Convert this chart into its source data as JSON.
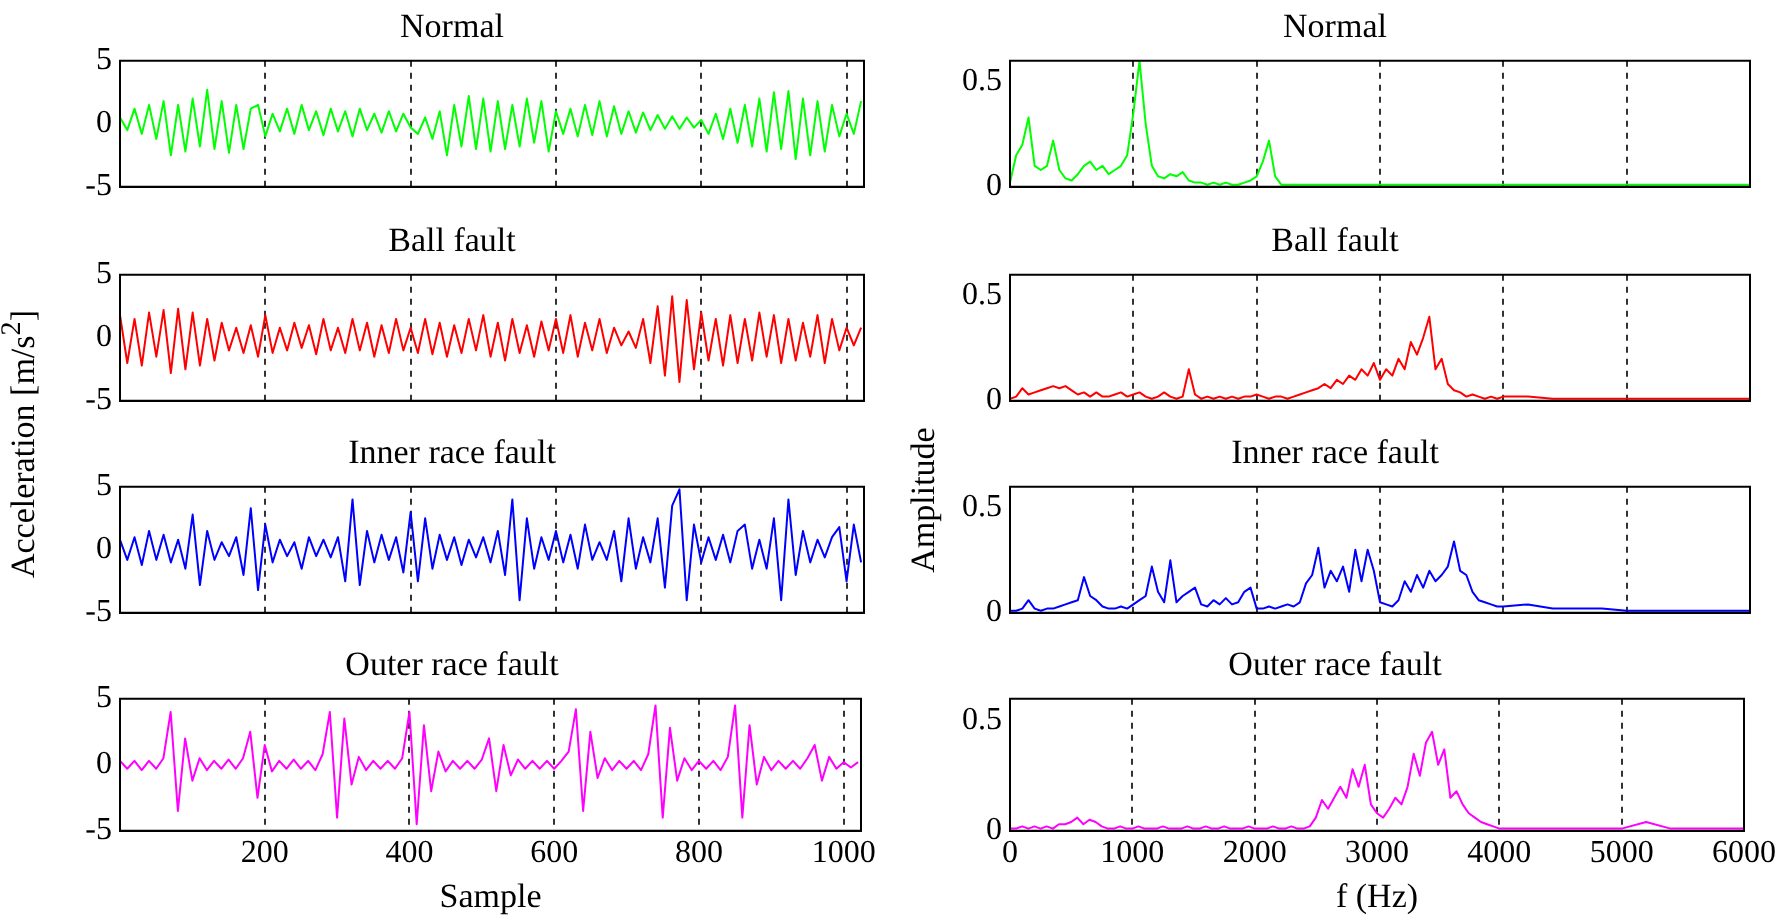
{
  "chart_data": [
    {
      "type": "line",
      "title": "Normal",
      "xlim": [
        0,
        1024
      ],
      "xticks": [
        200,
        400,
        600,
        800,
        1000
      ],
      "ylim": [
        -5,
        5
      ],
      "yticks": [
        -5,
        0,
        5
      ],
      "grid": "x",
      "tick_labels": "y",
      "x": [
        0,
        10,
        20,
        30,
        40,
        50,
        60,
        70,
        80,
        90,
        100,
        110,
        120,
        130,
        140,
        150,
        160,
        170,
        180,
        190,
        200,
        210,
        220,
        230,
        240,
        250,
        260,
        270,
        280,
        290,
        300,
        310,
        320,
        330,
        340,
        350,
        360,
        370,
        380,
        390,
        400,
        410,
        420,
        430,
        440,
        450,
        460,
        470,
        480,
        490,
        500,
        510,
        520,
        530,
        540,
        550,
        560,
        570,
        580,
        590,
        600,
        610,
        620,
        630,
        640,
        650,
        660,
        670,
        680,
        690,
        700,
        710,
        720,
        730,
        740,
        750,
        760,
        770,
        780,
        790,
        800,
        810,
        820,
        830,
        840,
        850,
        860,
        870,
        880,
        890,
        900,
        910,
        920,
        930,
        940,
        950,
        960,
        970,
        980,
        990,
        1000,
        1010,
        1020
      ],
      "series": [
        {
          "color": "#00ff00",
          "values": [
            0.5,
            -0.5,
            1.2,
            -0.8,
            1.5,
            -1.2,
            1.8,
            -2.5,
            1.5,
            -2.2,
            2.0,
            -1.8,
            2.7,
            -2.0,
            1.8,
            -2.3,
            1.5,
            -2.0,
            1.2,
            1.5,
            -1.0,
            0.8,
            -0.6,
            1.2,
            -0.8,
            1.5,
            -0.5,
            1.0,
            -0.9,
            1.2,
            -0.6,
            1.0,
            -1.0,
            1.2,
            -0.5,
            0.8,
            -0.7,
            1.0,
            -0.6,
            0.8,
            -0.3,
            -0.8,
            0.5,
            -1.2,
            1.0,
            -2.5,
            1.5,
            -1.8,
            2.2,
            -2.0,
            2.0,
            -2.2,
            1.8,
            -2.0,
            1.5,
            -1.8,
            2.0,
            -1.5,
            1.8,
            -2.2,
            1.0,
            -0.8,
            1.2,
            -1.0,
            1.5,
            -0.9,
            1.8,
            -1.0,
            1.4,
            -0.8,
            1.0,
            -0.7,
            0.9,
            -0.5,
            0.7,
            -0.4,
            0.6,
            -0.4,
            0.5,
            -0.3,
            0.3,
            -0.8,
            0.8,
            -1.2,
            1.2,
            -1.5,
            1.5,
            -1.8,
            2.0,
            -2.2,
            2.5,
            -2.0,
            2.6,
            -2.8,
            2.0,
            -2.5,
            1.8,
            -2.2,
            1.5,
            -1.0,
            0.8,
            -0.8,
            1.8
          ]
        }
      ]
    },
    {
      "type": "line",
      "title": "Normal",
      "xlim": [
        0,
        6000
      ],
      "xticks": [
        0,
        1000,
        2000,
        3000,
        4000,
        5000,
        6000
      ],
      "ylim": [
        0,
        0.6
      ],
      "yticks": [
        0,
        0.5
      ],
      "grid": "x",
      "tick_labels": "y",
      "x": [
        0,
        50,
        100,
        150,
        200,
        250,
        300,
        350,
        400,
        450,
        500,
        550,
        600,
        650,
        700,
        750,
        800,
        850,
        900,
        950,
        1000,
        1050,
        1100,
        1150,
        1200,
        1250,
        1300,
        1350,
        1400,
        1450,
        1500,
        1550,
        1600,
        1650,
        1700,
        1750,
        1800,
        1850,
        1900,
        1950,
        2000,
        2050,
        2100,
        2150,
        2200,
        2250,
        2300,
        2350,
        2400,
        2450,
        2500,
        2550,
        2600,
        2650,
        2700,
        2750,
        2800,
        2850,
        2900,
        2950,
        3000,
        3050,
        3100,
        3150,
        3200,
        3250,
        3300,
        3350,
        3400,
        3450,
        3500,
        3550,
        3600,
        3650,
        3700,
        3750,
        3800,
        3850,
        3900,
        3950,
        4000,
        4200,
        4400,
        4600,
        4800,
        5000,
        5200,
        5400,
        5600,
        5800,
        6000
      ],
      "series": [
        {
          "color": "#00ff00",
          "values": [
            0.02,
            0.15,
            0.2,
            0.33,
            0.1,
            0.08,
            0.1,
            0.22,
            0.08,
            0.04,
            0.03,
            0.06,
            0.1,
            0.12,
            0.08,
            0.1,
            0.06,
            0.08,
            0.1,
            0.15,
            0.35,
            0.6,
            0.3,
            0.1,
            0.05,
            0.04,
            0.06,
            0.05,
            0.07,
            0.03,
            0.02,
            0.02,
            0.01,
            0.02,
            0.01,
            0.02,
            0.01,
            0.01,
            0.02,
            0.03,
            0.05,
            0.12,
            0.22,
            0.05,
            0.01,
            0.01,
            0.01,
            0.01,
            0.01,
            0.01,
            0.01,
            0.01,
            0.01,
            0.01,
            0.01,
            0.01,
            0.01,
            0.01,
            0.01,
            0.01,
            0.01,
            0.01,
            0.01,
            0.01,
            0.01,
            0.01,
            0.01,
            0.01,
            0.01,
            0.01,
            0.01,
            0.01,
            0.01,
            0.01,
            0.01,
            0.01,
            0.01,
            0.01,
            0.01,
            0.01,
            0.01,
            0.01,
            0.01,
            0.01,
            0.01,
            0.01,
            0.01,
            0.01,
            0.01,
            0.01,
            0.01
          ]
        }
      ]
    },
    {
      "type": "line",
      "title": "Ball fault",
      "ylabel": "Acceleration [m/s$^{2}$]",
      "xlim": [
        0,
        1024
      ],
      "xticks": [
        200,
        400,
        600,
        800,
        1000
      ],
      "ylim": [
        -5,
        5
      ],
      "yticks": [
        -5,
        0,
        5
      ],
      "grid": "x",
      "tick_labels": "y",
      "x": [
        0,
        10,
        20,
        30,
        40,
        50,
        60,
        70,
        80,
        90,
        100,
        110,
        120,
        130,
        140,
        150,
        160,
        170,
        180,
        190,
        200,
        210,
        220,
        230,
        240,
        250,
        260,
        270,
        280,
        290,
        300,
        310,
        320,
        330,
        340,
        350,
        360,
        370,
        380,
        390,
        400,
        410,
        420,
        430,
        440,
        450,
        460,
        470,
        480,
        490,
        500,
        510,
        520,
        530,
        540,
        550,
        560,
        570,
        580,
        590,
        600,
        610,
        620,
        630,
        640,
        650,
        660,
        670,
        680,
        690,
        700,
        710,
        720,
        730,
        740,
        750,
        760,
        770,
        780,
        790,
        800,
        810,
        820,
        830,
        840,
        850,
        860,
        870,
        880,
        890,
        900,
        910,
        920,
        930,
        940,
        950,
        960,
        970,
        980,
        990,
        1000,
        1010,
        1020
      ],
      "series": [
        {
          "color": "#ff0000",
          "values": [
            1.8,
            -2.0,
            1.5,
            -2.2,
            2.0,
            -1.5,
            2.2,
            -2.8,
            2.3,
            -2.5,
            2.0,
            -2.2,
            1.5,
            -1.8,
            1.2,
            -1.0,
            0.8,
            -1.2,
            1.0,
            -1.5,
            1.8,
            -1.2,
            0.8,
            -1.0,
            1.2,
            -0.8,
            1.0,
            -1.3,
            1.5,
            -1.0,
            0.8,
            -1.2,
            1.5,
            -1.0,
            1.2,
            -1.5,
            1.0,
            -1.2,
            1.5,
            -1.0,
            0.8,
            -1.2,
            1.5,
            -1.3,
            1.2,
            -1.5,
            1.0,
            -1.2,
            1.5,
            -1.0,
            1.8,
            -1.5,
            1.2,
            -1.8,
            1.5,
            -1.2,
            1.0,
            -1.5,
            1.3,
            -1.0,
            1.5,
            -1.2,
            1.8,
            -1.5,
            1.2,
            -1.0,
            1.5,
            -1.2,
            0.8,
            -0.6,
            0.5,
            -0.8,
            1.5,
            -2.0,
            2.5,
            -3.0,
            3.3,
            -3.5,
            3.0,
            -2.5,
            2.0,
            -1.8,
            1.5,
            -2.2,
            1.8,
            -2.0,
            1.5,
            -1.8,
            2.0,
            -1.5,
            1.8,
            -2.0,
            1.5,
            -1.8,
            1.2,
            -1.5,
            1.8,
            -2.0,
            1.5,
            -1.0,
            0.8,
            -0.6,
            0.8
          ]
        }
      ]
    },
    {
      "type": "line",
      "title": "Ball fault",
      "ylabel": "Amplitude",
      "xlim": [
        0,
        6000
      ],
      "xticks": [
        0,
        1000,
        2000,
        3000,
        4000,
        5000,
        6000
      ],
      "ylim": [
        0,
        0.6
      ],
      "yticks": [
        0,
        0.5
      ],
      "grid": "x",
      "tick_labels": "y",
      "x": [
        0,
        50,
        100,
        150,
        200,
        250,
        300,
        350,
        400,
        450,
        500,
        550,
        600,
        650,
        700,
        750,
        800,
        850,
        900,
        950,
        1000,
        1050,
        1100,
        1150,
        1200,
        1250,
        1300,
        1350,
        1400,
        1450,
        1500,
        1550,
        1600,
        1650,
        1700,
        1750,
        1800,
        1850,
        1900,
        1950,
        2000,
        2050,
        2100,
        2150,
        2200,
        2250,
        2300,
        2350,
        2400,
        2450,
        2500,
        2550,
        2600,
        2650,
        2700,
        2750,
        2800,
        2850,
        2900,
        2950,
        3000,
        3050,
        3100,
        3150,
        3200,
        3250,
        3300,
        3350,
        3400,
        3450,
        3500,
        3550,
        3600,
        3650,
        3700,
        3750,
        3800,
        3850,
        3900,
        3950,
        4000,
        4200,
        4400,
        4600,
        4800,
        5000,
        5200,
        5400,
        5600,
        5800,
        6000
      ],
      "series": [
        {
          "color": "#ff0000",
          "values": [
            0.01,
            0.02,
            0.06,
            0.03,
            0.04,
            0.05,
            0.06,
            0.07,
            0.06,
            0.07,
            0.05,
            0.03,
            0.04,
            0.02,
            0.04,
            0.02,
            0.02,
            0.03,
            0.04,
            0.02,
            0.03,
            0.04,
            0.02,
            0.01,
            0.02,
            0.04,
            0.02,
            0.01,
            0.02,
            0.15,
            0.03,
            0.01,
            0.02,
            0.01,
            0.02,
            0.01,
            0.02,
            0.01,
            0.02,
            0.02,
            0.03,
            0.02,
            0.01,
            0.02,
            0.02,
            0.01,
            0.02,
            0.03,
            0.04,
            0.05,
            0.06,
            0.08,
            0.06,
            0.1,
            0.08,
            0.12,
            0.1,
            0.15,
            0.12,
            0.18,
            0.1,
            0.15,
            0.12,
            0.2,
            0.15,
            0.28,
            0.22,
            0.3,
            0.4,
            0.15,
            0.2,
            0.08,
            0.05,
            0.04,
            0.02,
            0.03,
            0.02,
            0.01,
            0.02,
            0.01,
            0.02,
            0.02,
            0.01,
            0.01,
            0.01,
            0.01,
            0.01,
            0.01,
            0.01,
            0.01,
            0.01
          ]
        }
      ]
    },
    {
      "type": "line",
      "title": "Inner race fault",
      "xlim": [
        0,
        1024
      ],
      "xticks": [
        200,
        400,
        600,
        800,
        1000
      ],
      "ylim": [
        -5,
        5
      ],
      "yticks": [
        -5,
        0,
        5
      ],
      "grid": "x",
      "tick_labels": "y",
      "x": [
        0,
        10,
        20,
        30,
        40,
        50,
        60,
        70,
        80,
        90,
        100,
        110,
        120,
        130,
        140,
        150,
        160,
        170,
        180,
        190,
        200,
        210,
        220,
        230,
        240,
        250,
        260,
        270,
        280,
        290,
        300,
        310,
        320,
        330,
        340,
        350,
        360,
        370,
        380,
        390,
        400,
        410,
        420,
        430,
        440,
        450,
        460,
        470,
        480,
        490,
        500,
        510,
        520,
        530,
        540,
        550,
        560,
        570,
        580,
        590,
        600,
        610,
        620,
        630,
        640,
        650,
        660,
        670,
        680,
        690,
        700,
        710,
        720,
        730,
        740,
        750,
        760,
        770,
        780,
        790,
        800,
        810,
        820,
        830,
        840,
        850,
        860,
        870,
        880,
        890,
        900,
        910,
        920,
        930,
        940,
        950,
        960,
        970,
        980,
        990,
        1000,
        1010,
        1020
      ],
      "series": [
        {
          "color": "#0000ff",
          "values": [
            0.8,
            -0.8,
            1.0,
            -1.2,
            1.5,
            -0.8,
            1.2,
            -1.0,
            0.8,
            -1.5,
            2.8,
            -2.8,
            1.5,
            -0.8,
            0.6,
            -0.5,
            1.0,
            -2.0,
            3.3,
            -3.2,
            2.0,
            -1.0,
            0.8,
            -0.5,
            0.6,
            -1.5,
            1.0,
            -0.5,
            0.8,
            -0.6,
            1.0,
            -2.5,
            4.0,
            -2.8,
            1.5,
            -1.0,
            1.2,
            -0.8,
            1.0,
            -1.8,
            3.0,
            -2.5,
            2.5,
            -1.5,
            1.2,
            -0.8,
            1.0,
            -1.2,
            0.8,
            -0.6,
            1.0,
            -1.0,
            1.5,
            -2.0,
            4.0,
            -4.0,
            2.5,
            -1.5,
            1.0,
            -0.8,
            1.5,
            -1.0,
            1.2,
            -1.5,
            2.0,
            -0.8,
            0.6,
            -0.8,
            1.5,
            -2.5,
            2.5,
            -1.5,
            1.0,
            -1.0,
            2.5,
            -3.0,
            3.5,
            4.8,
            -4.0,
            2.0,
            -1.0,
            1.0,
            -0.8,
            1.2,
            -1.0,
            1.5,
            2.0,
            -1.5,
            0.8,
            -1.5,
            2.5,
            -4.0,
            4.0,
            -2.0,
            1.5,
            -1.0,
            0.8,
            -0.6,
            1.0,
            1.8,
            -2.5,
            2.0,
            -1.0
          ]
        }
      ]
    },
    {
      "type": "line",
      "title": "Inner race fault",
      "xlim": [
        0,
        6000
      ],
      "xticks": [
        0,
        1000,
        2000,
        3000,
        4000,
        5000,
        6000
      ],
      "ylim": [
        0,
        0.6
      ],
      "yticks": [
        0,
        0.5
      ],
      "grid": "x",
      "tick_labels": "y",
      "x": [
        0,
        50,
        100,
        150,
        200,
        250,
        300,
        350,
        400,
        450,
        500,
        550,
        600,
        650,
        700,
        750,
        800,
        850,
        900,
        950,
        1000,
        1050,
        1100,
        1150,
        1200,
        1250,
        1300,
        1350,
        1400,
        1450,
        1500,
        1550,
        1600,
        1650,
        1700,
        1750,
        1800,
        1850,
        1900,
        1950,
        2000,
        2050,
        2100,
        2150,
        2200,
        2250,
        2300,
        2350,
        2400,
        2450,
        2500,
        2550,
        2600,
        2650,
        2700,
        2750,
        2800,
        2850,
        2900,
        2950,
        3000,
        3050,
        3100,
        3150,
        3200,
        3250,
        3300,
        3350,
        3400,
        3450,
        3500,
        3550,
        3600,
        3650,
        3700,
        3750,
        3800,
        3850,
        3900,
        3950,
        4000,
        4200,
        4400,
        4600,
        4800,
        5000,
        5200,
        5400,
        5600,
        5800,
        6000
      ],
      "series": [
        {
          "color": "#0000ff",
          "values": [
            0.01,
            0.01,
            0.02,
            0.06,
            0.02,
            0.01,
            0.02,
            0.02,
            0.03,
            0.04,
            0.05,
            0.06,
            0.17,
            0.08,
            0.06,
            0.03,
            0.02,
            0.02,
            0.03,
            0.02,
            0.04,
            0.06,
            0.08,
            0.22,
            0.1,
            0.05,
            0.25,
            0.05,
            0.08,
            0.1,
            0.12,
            0.04,
            0.03,
            0.06,
            0.04,
            0.07,
            0.04,
            0.05,
            0.1,
            0.12,
            0.02,
            0.02,
            0.03,
            0.02,
            0.03,
            0.04,
            0.03,
            0.05,
            0.14,
            0.18,
            0.31,
            0.12,
            0.2,
            0.15,
            0.22,
            0.1,
            0.3,
            0.15,
            0.3,
            0.2,
            0.05,
            0.04,
            0.03,
            0.06,
            0.15,
            0.1,
            0.18,
            0.12,
            0.2,
            0.15,
            0.18,
            0.22,
            0.34,
            0.2,
            0.18,
            0.1,
            0.06,
            0.05,
            0.04,
            0.03,
            0.03,
            0.04,
            0.02,
            0.02,
            0.02,
            0.01,
            0.01,
            0.01,
            0.01,
            0.01,
            0.01
          ]
        }
      ]
    },
    {
      "type": "line",
      "title": "Outer race fault",
      "xlabel": "Sample",
      "xlim": [
        0,
        1024
      ],
      "xticks": [
        200,
        400,
        600,
        800,
        1000
      ],
      "ylim": [
        -5,
        5
      ],
      "yticks": [
        -5,
        0,
        5
      ],
      "grid": "x",
      "x": [
        0,
        10,
        20,
        30,
        40,
        50,
        60,
        70,
        80,
        90,
        100,
        110,
        120,
        130,
        140,
        150,
        160,
        170,
        180,
        190,
        200,
        210,
        220,
        230,
        240,
        250,
        260,
        270,
        280,
        290,
        300,
        310,
        320,
        330,
        340,
        350,
        360,
        370,
        380,
        390,
        400,
        410,
        420,
        430,
        440,
        450,
        460,
        470,
        480,
        490,
        500,
        510,
        520,
        530,
        540,
        550,
        560,
        570,
        580,
        590,
        600,
        610,
        620,
        630,
        640,
        650,
        660,
        670,
        680,
        690,
        700,
        710,
        720,
        730,
        740,
        750,
        760,
        770,
        780,
        790,
        800,
        810,
        820,
        830,
        840,
        850,
        860,
        870,
        880,
        890,
        900,
        910,
        920,
        930,
        940,
        950,
        960,
        970,
        980,
        990,
        1000,
        1010,
        1020
      ],
      "series": [
        {
          "color": "#ff00ff",
          "values": [
            0.3,
            -0.3,
            0.3,
            -0.4,
            0.3,
            -0.3,
            0.5,
            4.0,
            -3.5,
            2.0,
            -1.2,
            0.5,
            -0.4,
            0.3,
            -0.3,
            0.4,
            -0.3,
            0.5,
            2.5,
            -2.5,
            1.5,
            -0.5,
            0.3,
            -0.3,
            0.4,
            -0.3,
            0.3,
            -0.4,
            0.8,
            4.0,
            -4.0,
            3.5,
            -1.5,
            0.6,
            -0.4,
            0.3,
            -0.3,
            0.3,
            -0.3,
            0.5,
            4.0,
            -4.5,
            3.0,
            -2.0,
            1.0,
            -0.5,
            0.3,
            -0.3,
            0.3,
            -0.3,
            0.4,
            2.0,
            -2.0,
            1.5,
            -0.8,
            0.4,
            -0.3,
            0.3,
            -0.3,
            0.3,
            -0.3,
            0.3,
            1.0,
            4.2,
            -3.5,
            2.5,
            -1.0,
            0.5,
            -0.4,
            0.3,
            -0.3,
            0.3,
            -0.4,
            0.8,
            4.5,
            -4.0,
            2.8,
            -1.2,
            0.5,
            -0.4,
            0.3,
            -0.3,
            0.3,
            -0.4,
            0.6,
            4.5,
            -4.0,
            3.0,
            -1.5,
            0.6,
            -0.4,
            0.3,
            -0.3,
            0.3,
            -0.3,
            0.5,
            1.5,
            -1.2,
            0.6,
            -0.3,
            0.2,
            -0.2,
            0.2
          ]
        }
      ]
    },
    {
      "type": "line",
      "title": "Outer race fault",
      "xlabel": "f (Hz)",
      "xlim": [
        0,
        6000
      ],
      "xticks": [
        0,
        1000,
        2000,
        3000,
        4000,
        5000,
        6000
      ],
      "ylim": [
        0,
        0.6
      ],
      "yticks": [
        0,
        0.5
      ],
      "grid": "x",
      "x": [
        0,
        50,
        100,
        150,
        200,
        250,
        300,
        350,
        400,
        450,
        500,
        550,
        600,
        650,
        700,
        750,
        800,
        850,
        900,
        950,
        1000,
        1050,
        1100,
        1150,
        1200,
        1250,
        1300,
        1350,
        1400,
        1450,
        1500,
        1550,
        1600,
        1650,
        1700,
        1750,
        1800,
        1850,
        1900,
        1950,
        2000,
        2050,
        2100,
        2150,
        2200,
        2250,
        2300,
        2350,
        2400,
        2450,
        2500,
        2550,
        2600,
        2650,
        2700,
        2750,
        2800,
        2850,
        2900,
        2950,
        3000,
        3050,
        3100,
        3150,
        3200,
        3250,
        3300,
        3350,
        3400,
        3450,
        3500,
        3550,
        3600,
        3650,
        3700,
        3750,
        3800,
        3850,
        3900,
        3950,
        4000,
        4200,
        4400,
        4600,
        4800,
        5000,
        5200,
        5400,
        5600,
        5800,
        6000
      ],
      "series": [
        {
          "color": "#ff00ff",
          "values": [
            0.01,
            0.01,
            0.02,
            0.01,
            0.02,
            0.01,
            0.02,
            0.01,
            0.03,
            0.03,
            0.04,
            0.06,
            0.03,
            0.05,
            0.04,
            0.02,
            0.01,
            0.01,
            0.02,
            0.01,
            0.01,
            0.02,
            0.01,
            0.01,
            0.01,
            0.02,
            0.01,
            0.01,
            0.01,
            0.02,
            0.01,
            0.01,
            0.02,
            0.01,
            0.01,
            0.02,
            0.01,
            0.01,
            0.01,
            0.02,
            0.01,
            0.01,
            0.01,
            0.02,
            0.01,
            0.01,
            0.02,
            0.01,
            0.01,
            0.02,
            0.06,
            0.14,
            0.1,
            0.15,
            0.2,
            0.15,
            0.28,
            0.2,
            0.3,
            0.12,
            0.08,
            0.06,
            0.1,
            0.15,
            0.12,
            0.2,
            0.35,
            0.25,
            0.4,
            0.45,
            0.3,
            0.37,
            0.15,
            0.18,
            0.12,
            0.08,
            0.06,
            0.04,
            0.03,
            0.02,
            0.01,
            0.01,
            0.01,
            0.01,
            0.01,
            0.01,
            0.04,
            0.01,
            0.01,
            0.01,
            0.01
          ]
        }
      ]
    }
  ]
}
